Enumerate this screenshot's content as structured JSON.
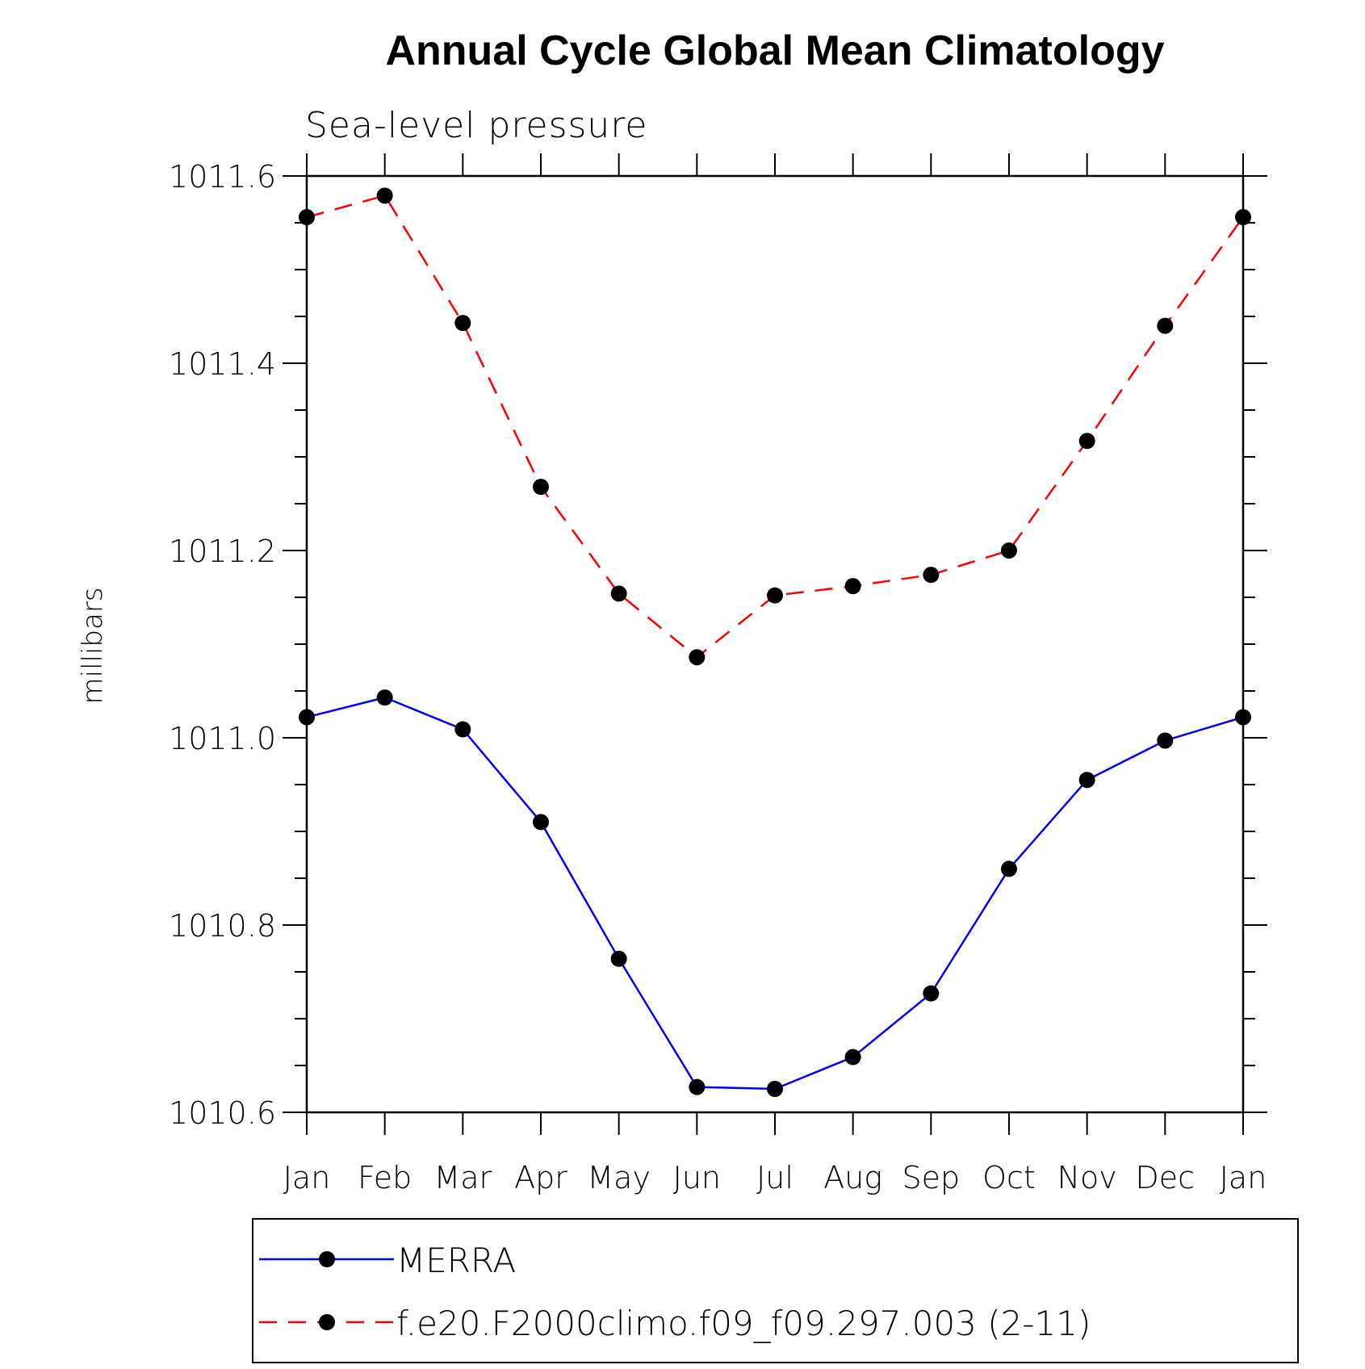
{
  "chart_data": {
    "type": "line",
    "title": "Annual Cycle Global Mean Climatology",
    "subtitle": "Sea-level pressure",
    "xlabel": "",
    "ylabel": "millibars",
    "categories": [
      "Jan",
      "Feb",
      "Mar",
      "Apr",
      "May",
      "Jun",
      "Jul",
      "Aug",
      "Sep",
      "Oct",
      "Nov",
      "Dec",
      "Jan"
    ],
    "ylim": [
      1010.6,
      1011.6
    ],
    "yticks": [
      1010.6,
      1010.8,
      1011.0,
      1011.2,
      1011.4,
      1011.6
    ],
    "ytick_labels": [
      "1010.6",
      "1010.8",
      "1011.0",
      "1011.2",
      "1011.4",
      "1011.6"
    ],
    "grid": false,
    "legend_position": "bottom",
    "series": [
      {
        "name": "MERRA",
        "color": "#0000ff",
        "line_style": "solid",
        "marker": "filled-circle",
        "values": [
          1011.022,
          1011.043,
          1011.009,
          1010.91,
          1010.764,
          1010.627,
          1010.625,
          1010.659,
          1010.727,
          1010.86,
          1010.955,
          1010.997,
          1011.022
        ]
      },
      {
        "name": "f.e20.F2000climo.f09_f09.297.003 (2-11)",
        "color": "#ff0000",
        "line_style": "dashed",
        "marker": "filled-circle",
        "values": [
          1011.556,
          1011.579,
          1011.443,
          1011.268,
          1011.154,
          1011.086,
          1011.152,
          1011.162,
          1011.174,
          1011.2,
          1011.317,
          1011.44,
          1011.556
        ]
      }
    ]
  }
}
